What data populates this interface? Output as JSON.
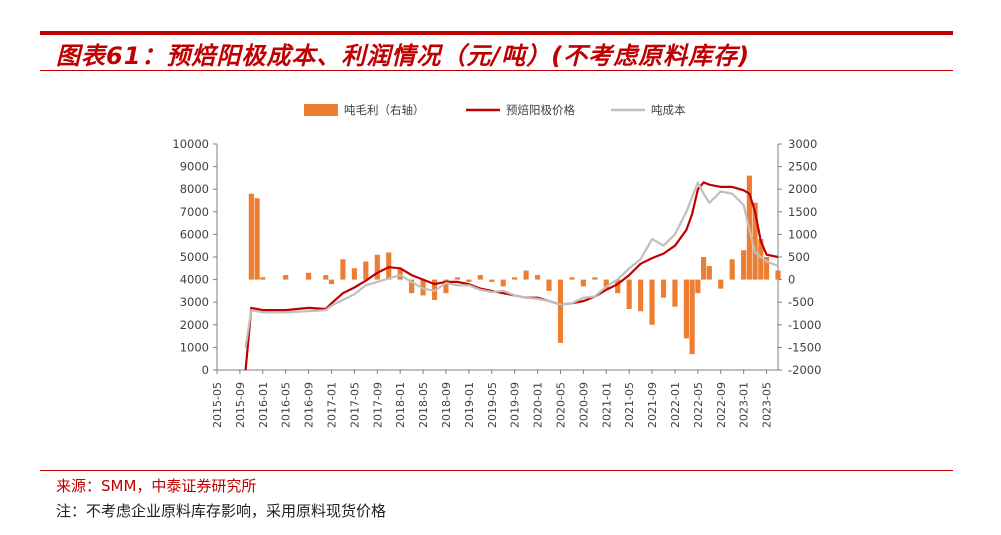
{
  "header": {
    "title": "图表61：预焙阳极成本、利润情况（元/吨）(不考虑原料库存)"
  },
  "footer": {
    "source": "来源：SMM，中泰证券研究所",
    "note": "注：不考虑企业原料库存影响，采用原料现货价格"
  },
  "colors": {
    "accent": "#c00000",
    "margin_bar": "#ed7d31",
    "price_line": "#c00000",
    "cost_line": "#bfbfbf"
  },
  "chart_data": {
    "type": "bar+line",
    "title": "",
    "legend": {
      "position": "top",
      "entries": [
        "吨毛利（右轴）",
        "预焙阳极价格",
        "吨成本"
      ]
    },
    "x_tick_labels": [
      "2015-05",
      "2015-09",
      "2016-01",
      "2016-05",
      "2016-09",
      "2017-01",
      "2017-05",
      "2017-09",
      "2018-01",
      "2018-05",
      "2018-09",
      "2019-01",
      "2019-05",
      "2019-09",
      "2020-01",
      "2020-05",
      "2020-09",
      "2021-01",
      "2021-05",
      "2021-09",
      "2022-01",
      "2022-05",
      "2022-09",
      "2023-01",
      "2023-05"
    ],
    "left_axis": {
      "ylim": [
        0,
        10000
      ],
      "ticks": [
        0,
        1000,
        2000,
        3000,
        4000,
        5000,
        6000,
        7000,
        8000,
        9000,
        10000
      ]
    },
    "right_axis": {
      "ylim": [
        -2000,
        3000
      ],
      "ticks": [
        -2000,
        -1500,
        -1000,
        -500,
        0,
        500,
        1000,
        1500,
        2000,
        2500,
        3000
      ]
    },
    "grid": false,
    "series": [
      {
        "name": "预焙阳极价格",
        "axis": "left",
        "kind": "line",
        "points": [
          [
            "2015-10",
            0
          ],
          [
            "2015-11",
            2750
          ],
          [
            "2016-01",
            2650
          ],
          [
            "2016-05",
            2650
          ],
          [
            "2016-09",
            2750
          ],
          [
            "2016-12",
            2700
          ],
          [
            "2017-01",
            2950
          ],
          [
            "2017-03",
            3400
          ],
          [
            "2017-05",
            3650
          ],
          [
            "2017-07",
            3950
          ],
          [
            "2017-09",
            4300
          ],
          [
            "2017-11",
            4550
          ],
          [
            "2018-01",
            4500
          ],
          [
            "2018-03",
            4200
          ],
          [
            "2018-05",
            4000
          ],
          [
            "2018-07",
            3800
          ],
          [
            "2018-09",
            3900
          ],
          [
            "2018-11",
            3900
          ],
          [
            "2019-01",
            3800
          ],
          [
            "2019-03",
            3600
          ],
          [
            "2019-05",
            3500
          ],
          [
            "2019-07",
            3400
          ],
          [
            "2019-09",
            3300
          ],
          [
            "2019-11",
            3200
          ],
          [
            "2020-01",
            3200
          ],
          [
            "2020-05",
            2900
          ],
          [
            "2020-07",
            2950
          ],
          [
            "2020-09",
            3050
          ],
          [
            "2020-11",
            3250
          ],
          [
            "2021-01",
            3550
          ],
          [
            "2021-03",
            3800
          ],
          [
            "2021-05",
            4200
          ],
          [
            "2021-07",
            4700
          ],
          [
            "2021-09",
            4950
          ],
          [
            "2021-11",
            5150
          ],
          [
            "2022-01",
            5500
          ],
          [
            "2022-03",
            6200
          ],
          [
            "2022-04",
            6900
          ],
          [
            "2022-05",
            8000
          ],
          [
            "2022-06",
            8300
          ],
          [
            "2022-07",
            8200
          ],
          [
            "2022-09",
            8100
          ],
          [
            "2022-11",
            8100
          ],
          [
            "2023-01",
            7950
          ],
          [
            "2023-02",
            7800
          ],
          [
            "2023-03",
            7000
          ],
          [
            "2023-04",
            5700
          ],
          [
            "2023-05",
            5100
          ],
          [
            "2023-07",
            5000
          ]
        ]
      },
      {
        "name": "吨成本",
        "axis": "left",
        "kind": "line",
        "points": [
          [
            "2015-10",
            1000
          ],
          [
            "2015-11",
            2650
          ],
          [
            "2016-01",
            2550
          ],
          [
            "2016-05",
            2550
          ],
          [
            "2016-09",
            2600
          ],
          [
            "2016-12",
            2650
          ],
          [
            "2017-01",
            2850
          ],
          [
            "2017-03",
            3100
          ],
          [
            "2017-05",
            3350
          ],
          [
            "2017-07",
            3750
          ],
          [
            "2017-09",
            3900
          ],
          [
            "2017-11",
            4050
          ],
          [
            "2018-01",
            4200
          ],
          [
            "2018-03",
            3900
          ],
          [
            "2018-05",
            3600
          ],
          [
            "2018-07",
            3500
          ],
          [
            "2018-09",
            3850
          ],
          [
            "2018-11",
            3750
          ],
          [
            "2019-01",
            3750
          ],
          [
            "2019-03",
            3550
          ],
          [
            "2019-05",
            3450
          ],
          [
            "2019-07",
            3500
          ],
          [
            "2019-09",
            3300
          ],
          [
            "2019-11",
            3200
          ],
          [
            "2020-01",
            3150
          ],
          [
            "2020-03",
            3050
          ],
          [
            "2020-05",
            2900
          ],
          [
            "2020-07",
            2950
          ],
          [
            "2020-09",
            3200
          ],
          [
            "2020-11",
            3250
          ],
          [
            "2021-01",
            3700
          ],
          [
            "2021-03",
            4000
          ],
          [
            "2021-05",
            4500
          ],
          [
            "2021-07",
            4900
          ],
          [
            "2021-09",
            5800
          ],
          [
            "2021-11",
            5500
          ],
          [
            "2022-01",
            6000
          ],
          [
            "2022-03",
            7000
          ],
          [
            "2022-05",
            8300
          ],
          [
            "2022-06",
            7800
          ],
          [
            "2022-07",
            7400
          ],
          [
            "2022-09",
            7900
          ],
          [
            "2022-11",
            7800
          ],
          [
            "2023-01",
            7300
          ],
          [
            "2023-02",
            6200
          ],
          [
            "2023-03",
            5200
          ],
          [
            "2023-04",
            5000
          ],
          [
            "2023-05",
            4800
          ],
          [
            "2023-07",
            4600
          ]
        ]
      },
      {
        "name": "吨毛利（右轴）",
        "axis": "right",
        "kind": "bar",
        "points": [
          [
            "2015-11",
            1900
          ],
          [
            "2015-12",
            1800
          ],
          [
            "2016-01",
            50
          ],
          [
            "2016-05",
            100
          ],
          [
            "2016-09",
            150
          ],
          [
            "2016-12",
            100
          ],
          [
            "2017-01",
            -100
          ],
          [
            "2017-03",
            450
          ],
          [
            "2017-05",
            250
          ],
          [
            "2017-07",
            400
          ],
          [
            "2017-09",
            550
          ],
          [
            "2017-11",
            600
          ],
          [
            "2018-01",
            250
          ],
          [
            "2018-03",
            -300
          ],
          [
            "2018-05",
            -350
          ],
          [
            "2018-07",
            -450
          ],
          [
            "2018-09",
            -300
          ],
          [
            "2018-11",
            50
          ],
          [
            "2019-01",
            -50
          ],
          [
            "2019-03",
            100
          ],
          [
            "2019-05",
            -50
          ],
          [
            "2019-07",
            -150
          ],
          [
            "2019-09",
            50
          ],
          [
            "2019-11",
            200
          ],
          [
            "2020-01",
            100
          ],
          [
            "2020-03",
            -250
          ],
          [
            "2020-05",
            -1400
          ],
          [
            "2020-07",
            50
          ],
          [
            "2020-09",
            -150
          ],
          [
            "2020-11",
            50
          ],
          [
            "2021-01",
            -200
          ],
          [
            "2021-03",
            -300
          ],
          [
            "2021-05",
            -650
          ],
          [
            "2021-07",
            -700
          ],
          [
            "2021-09",
            -1000
          ],
          [
            "2021-11",
            -400
          ],
          [
            "2022-01",
            -600
          ],
          [
            "2022-03",
            -1300
          ],
          [
            "2022-04",
            -1650
          ],
          [
            "2022-05",
            -300
          ],
          [
            "2022-06",
            500
          ],
          [
            "2022-07",
            300
          ],
          [
            "2022-09",
            -200
          ],
          [
            "2022-11",
            450
          ],
          [
            "2023-01",
            650
          ],
          [
            "2023-02",
            2300
          ],
          [
            "2023-03",
            1700
          ],
          [
            "2023-04",
            900
          ],
          [
            "2023-05",
            500
          ],
          [
            "2023-07",
            200
          ]
        ]
      }
    ]
  }
}
